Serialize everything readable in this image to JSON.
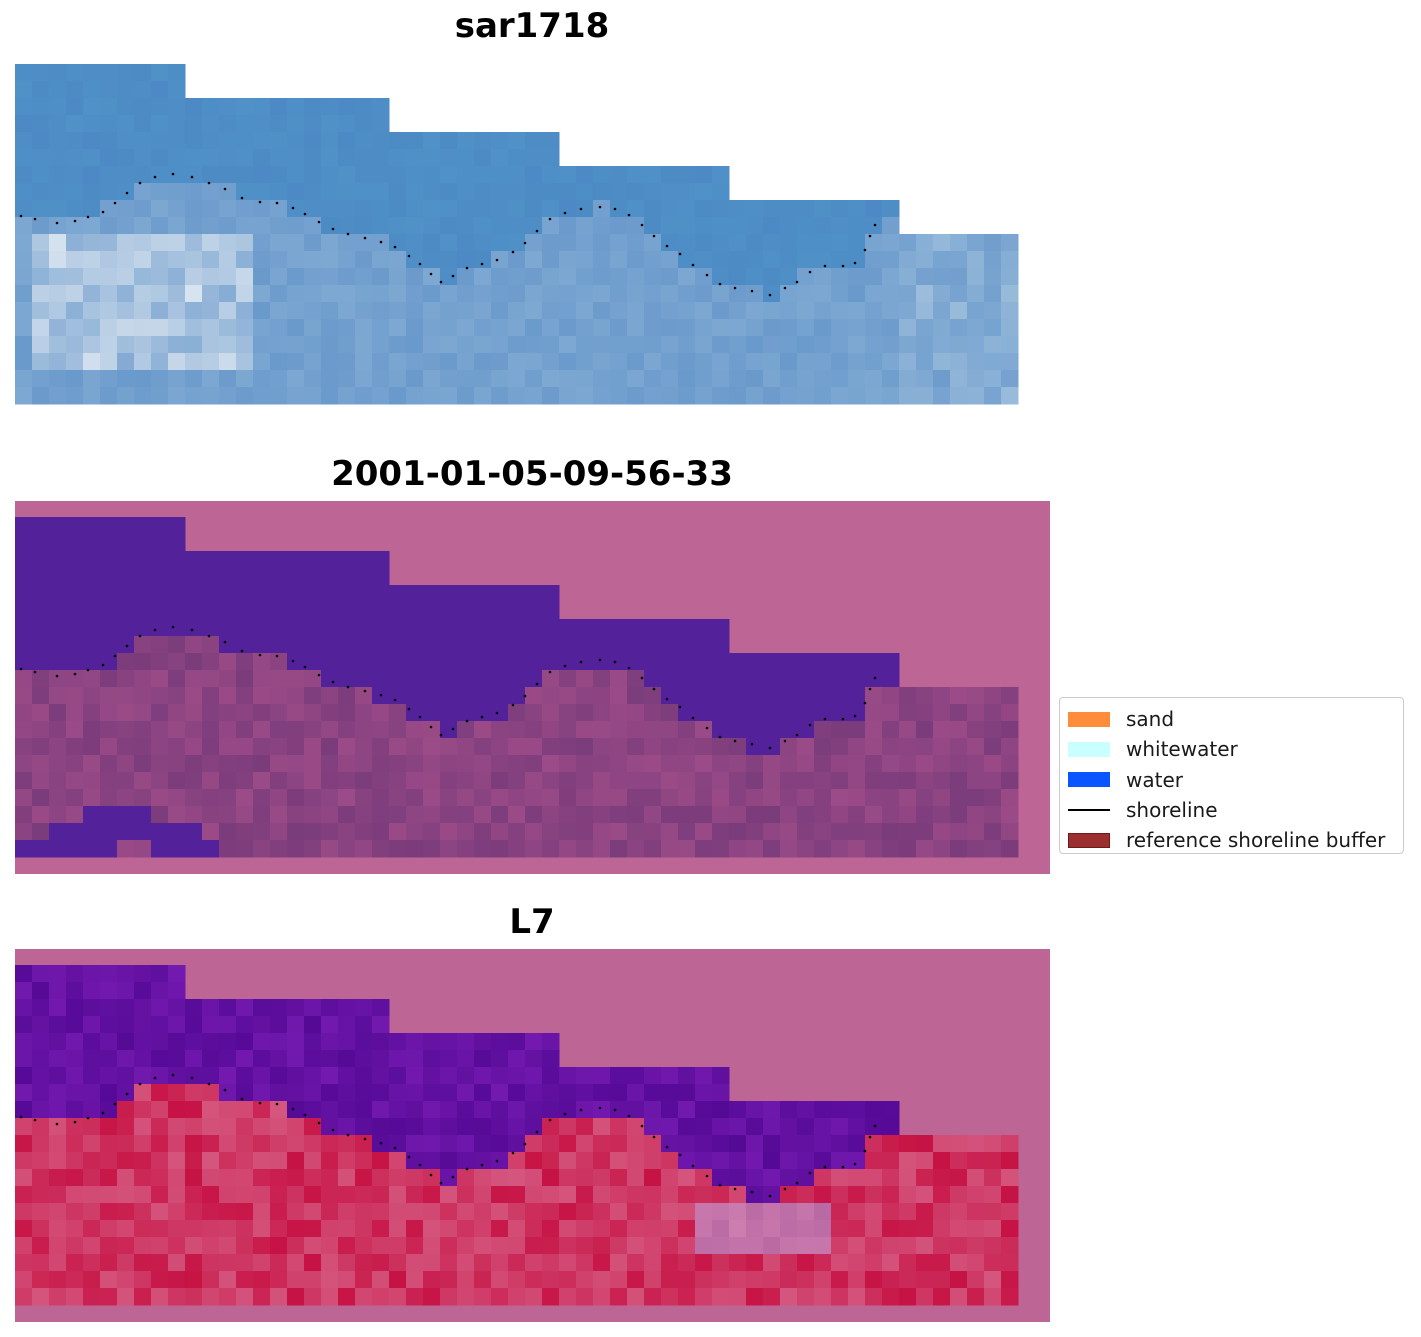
{
  "panels": [
    {
      "title": "sar1718",
      "kind": "rgb"
    },
    {
      "title": "2001-01-05-09-56-33",
      "kind": "classification"
    },
    {
      "title": "L7",
      "kind": "index"
    }
  ],
  "legend": {
    "items": [
      {
        "label": "sand",
        "color": "#ff8c3a",
        "shape": "patch"
      },
      {
        "label": "whitewater",
        "color": "#c9ffff",
        "shape": "patch"
      },
      {
        "label": "water",
        "color": "#0a55ff",
        "shape": "patch"
      },
      {
        "label": "shoreline",
        "color": "#000000",
        "shape": "line"
      },
      {
        "label": "reference shoreline buffer",
        "color": "#9b2f2f",
        "shape": "patch"
      }
    ]
  },
  "colors": {
    "buffer_background": "#bd6696",
    "water_class": "#53229a",
    "shoreline_dots": "#000000"
  }
}
